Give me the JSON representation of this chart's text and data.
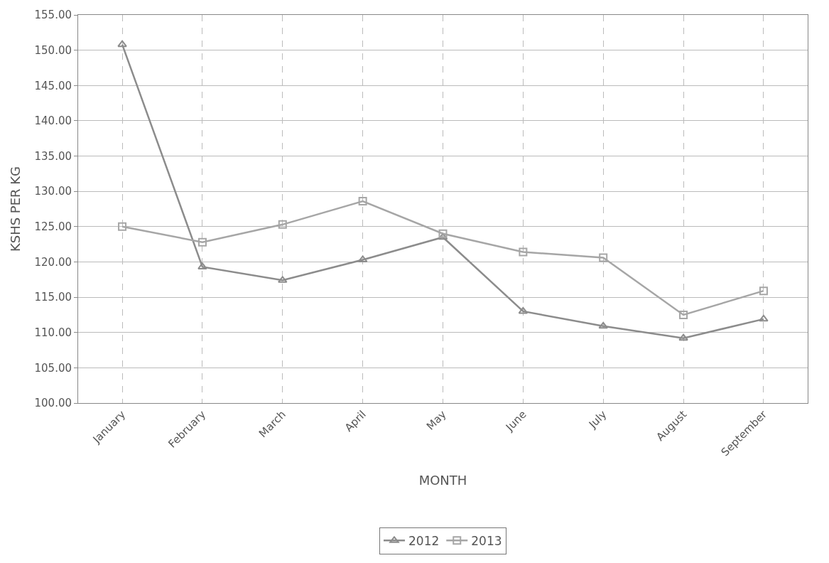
{
  "chart_data": {
    "type": "line",
    "xlabel": "MONTH",
    "ylabel": "KSHS PER KG",
    "categories": [
      "January",
      "February",
      "March",
      "April",
      "May",
      "June",
      "July",
      "August",
      "September"
    ],
    "series": [
      {
        "name": "2012",
        "color": "#8c8c8c",
        "marker": "triangle",
        "values": [
          150.8,
          119.3,
          117.4,
          120.3,
          123.5,
          113.0,
          110.9,
          109.2,
          111.9
        ]
      },
      {
        "name": "2013",
        "color": "#a6a6a6",
        "marker": "square",
        "values": [
          125.0,
          122.8,
          125.3,
          128.6,
          124.0,
          121.4,
          120.6,
          112.5,
          115.9
        ]
      }
    ],
    "ylim": [
      100,
      155
    ],
    "yticks": [
      {
        "value": 100,
        "label": "100.00"
      },
      {
        "value": 105,
        "label": "105.00"
      },
      {
        "value": 110,
        "label": "110.00"
      },
      {
        "value": 115,
        "label": "115.00"
      },
      {
        "value": 120,
        "label": "120.00"
      },
      {
        "value": 125,
        "label": "125.00"
      },
      {
        "value": 130,
        "label": "130.00"
      },
      {
        "value": 135,
        "label": "135.00"
      },
      {
        "value": 140,
        "label": "140.00"
      },
      {
        "value": 145,
        "label": "145.00"
      },
      {
        "value": 150,
        "label": "150.00"
      },
      {
        "value": 155,
        "label": "155.00"
      }
    ],
    "grid": true,
    "legend": "bottom",
    "line_style": "solid"
  }
}
